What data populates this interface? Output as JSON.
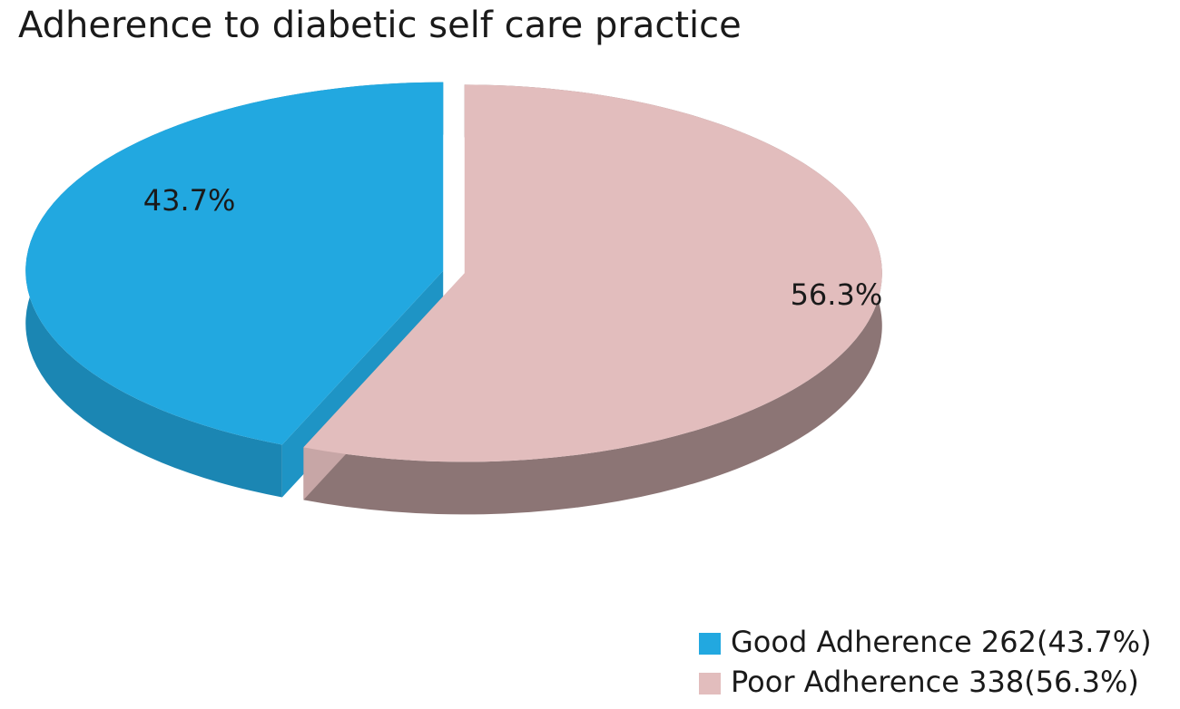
{
  "chart_data": {
    "type": "pie",
    "title": "Adherence to diabetic self care practice",
    "categories": [
      "Good Adherence 262(43.7%)",
      "Poor Adherence 338(56.3%)"
    ],
    "values": [
      43.7,
      56.3
    ],
    "value_labels": [
      "43.7%",
      "56.3%"
    ],
    "colors": [
      "#22a8e0",
      "#e2bdbd"
    ],
    "legend": "bottom-right"
  }
}
